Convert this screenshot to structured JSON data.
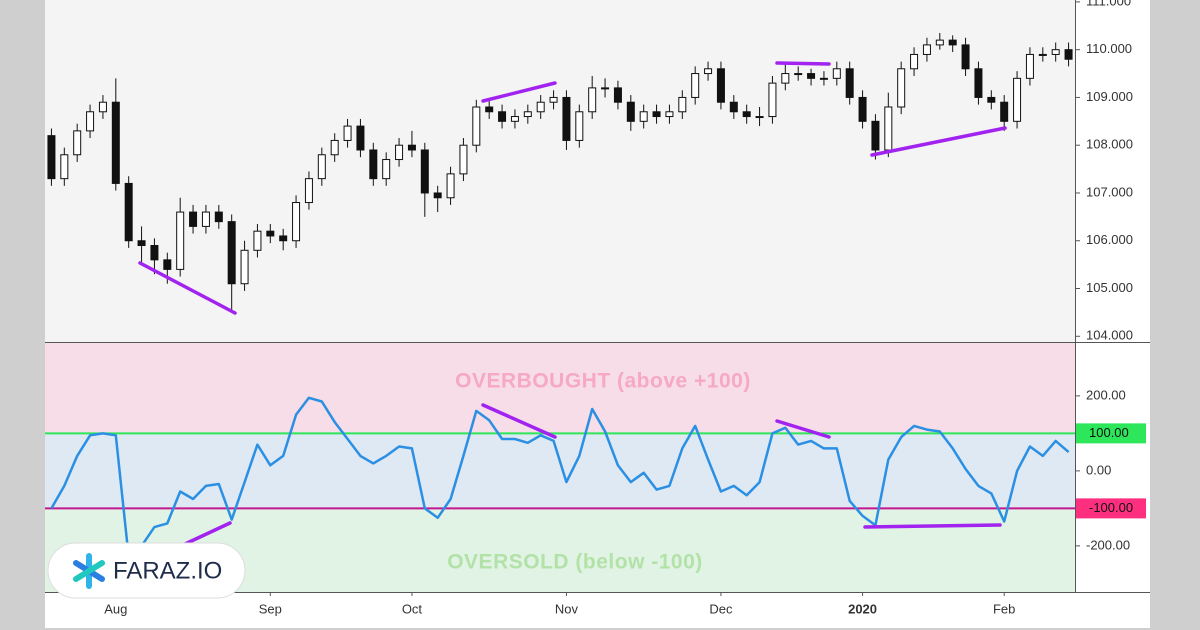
{
  "chart_data": [
    {
      "type": "candlestick",
      "categories": [
        null,
        null,
        null,
        null,
        null,
        "Aug",
        null,
        null,
        null,
        null,
        null,
        null,
        null,
        null,
        null,
        null,
        null,
        "Sep",
        null,
        null,
        null,
        null,
        null,
        null,
        null,
        null,
        null,
        null,
        "Oct",
        null,
        null,
        null,
        null,
        null,
        null,
        null,
        null,
        null,
        null,
        null,
        "Nov",
        null,
        null,
        null,
        null,
        null,
        null,
        null,
        null,
        null,
        null,
        null,
        "Dec",
        null,
        null,
        null,
        null,
        null,
        null,
        null,
        null,
        null,
        null,
        "2020",
        null,
        null,
        null,
        null,
        null,
        null,
        null,
        null,
        null,
        null,
        "Feb",
        null,
        null,
        null,
        null,
        null
      ],
      "open": [
        108.2,
        107.3,
        107.8,
        108.3,
        108.7,
        108.9,
        107.2,
        106.0,
        105.9,
        105.6,
        105.4,
        106.6,
        106.3,
        106.6,
        106.4,
        105.1,
        105.8,
        106.2,
        106.1,
        106.0,
        106.8,
        107.3,
        107.8,
        108.1,
        108.4,
        107.9,
        107.3,
        107.7,
        108.0,
        107.9,
        107.0,
        106.9,
        107.4,
        108.0,
        108.8,
        108.7,
        108.5,
        108.6,
        108.7,
        108.9,
        109.0,
        108.1,
        108.7,
        109.2,
        109.2,
        108.9,
        108.5,
        108.7,
        108.6,
        108.7,
        109.0,
        109.5,
        109.6,
        108.9,
        108.7,
        108.6,
        108.6,
        109.3,
        109.5,
        109.5,
        109.4,
        109.4,
        109.6,
        109.0,
        108.5,
        107.9,
        108.8,
        109.6,
        109.9,
        110.1,
        110.2,
        110.1,
        109.6,
        109.0,
        108.9,
        108.5,
        109.4,
        109.9,
        109.9,
        110.0
      ],
      "high": [
        108.35,
        107.95,
        108.45,
        108.85,
        109.05,
        109.4,
        107.35,
        106.3,
        106.05,
        105.75,
        106.9,
        106.75,
        106.75,
        106.75,
        106.55,
        106.0,
        106.35,
        106.35,
        106.25,
        106.95,
        107.45,
        107.95,
        108.25,
        108.55,
        108.55,
        108.05,
        107.85,
        108.15,
        108.3,
        108.05,
        107.15,
        107.55,
        108.15,
        108.95,
        108.95,
        108.85,
        108.75,
        108.85,
        109.05,
        109.15,
        109.15,
        108.85,
        109.45,
        109.4,
        109.35,
        109.05,
        108.85,
        108.85,
        108.85,
        109.15,
        109.65,
        109.75,
        109.75,
        109.05,
        108.85,
        108.8,
        109.45,
        109.7,
        109.65,
        109.6,
        109.55,
        109.75,
        109.75,
        109.15,
        108.65,
        109.1,
        109.75,
        110.05,
        110.25,
        110.35,
        110.3,
        110.25,
        109.75,
        109.15,
        109.05,
        109.55,
        110.05,
        110.05,
        110.15,
        110.15
      ],
      "low": [
        107.15,
        107.15,
        107.65,
        108.15,
        108.55,
        107.05,
        105.85,
        105.5,
        105.3,
        105.1,
        105.25,
        106.15,
        106.15,
        106.25,
        104.5,
        104.95,
        105.65,
        105.95,
        105.8,
        105.85,
        106.65,
        107.15,
        107.65,
        107.95,
        107.75,
        107.15,
        107.15,
        107.55,
        107.75,
        106.5,
        106.6,
        106.75,
        107.25,
        107.85,
        108.55,
        108.35,
        108.35,
        108.45,
        108.55,
        108.75,
        107.9,
        107.95,
        108.55,
        109.0,
        108.75,
        108.3,
        108.35,
        108.45,
        108.45,
        108.55,
        108.85,
        109.35,
        108.75,
        108.55,
        108.45,
        108.4,
        108.45,
        109.15,
        109.35,
        109.25,
        109.25,
        109.25,
        108.85,
        108.35,
        107.7,
        107.75,
        108.65,
        109.45,
        109.75,
        110.0,
        109.95,
        109.45,
        108.85,
        108.75,
        108.3,
        108.35,
        109.25,
        109.75,
        109.75,
        109.65
      ],
      "close": [
        107.3,
        107.8,
        108.3,
        108.7,
        108.9,
        107.2,
        106.0,
        105.9,
        105.6,
        105.4,
        106.6,
        106.3,
        106.6,
        106.4,
        105.1,
        105.8,
        106.2,
        106.1,
        106.0,
        106.8,
        107.3,
        107.8,
        108.1,
        108.4,
        107.9,
        107.3,
        107.7,
        108.0,
        107.9,
        107.0,
        106.9,
        107.4,
        108.0,
        108.8,
        108.7,
        108.5,
        108.6,
        108.7,
        108.9,
        109.0,
        108.1,
        108.7,
        109.2,
        109.2,
        108.9,
        108.5,
        108.7,
        108.6,
        108.7,
        109.0,
        109.5,
        109.6,
        108.9,
        108.7,
        108.6,
        108.6,
        109.3,
        109.5,
        109.5,
        109.4,
        109.4,
        109.6,
        109.0,
        108.5,
        107.9,
        108.8,
        109.6,
        109.9,
        110.1,
        110.2,
        110.1,
        109.6,
        109.0,
        108.9,
        108.5,
        109.4,
        109.9,
        109.9,
        110.0,
        109.8
      ],
      "up_color": "#ffffff",
      "down_color": "#111111",
      "ylim": [
        103.88,
        111.04
      ],
      "yticks": [
        {
          "value": 111,
          "label": "111.000"
        },
        {
          "value": 110,
          "label": "110.000"
        },
        {
          "value": 109,
          "label": "109.000"
        },
        {
          "value": 108,
          "label": "108.000"
        },
        {
          "value": 107,
          "label": "107.000"
        },
        {
          "value": 106,
          "label": "106.000"
        },
        {
          "value": 105,
          "label": "105.000"
        },
        {
          "value": 104,
          "label": "104.000"
        }
      ]
    },
    {
      "type": "line",
      "values": [
        -100,
        -40,
        40,
        95,
        100,
        95,
        -230,
        -200,
        -150,
        -140,
        -55,
        -75,
        -40,
        -35,
        -130,
        -30,
        70,
        15,
        40,
        150,
        195,
        185,
        130,
        85,
        40,
        20,
        40,
        65,
        60,
        -100,
        -125,
        -75,
        40,
        160,
        135,
        85,
        85,
        75,
        95,
        80,
        -30,
        40,
        165,
        105,
        15,
        -30,
        -5,
        -50,
        -40,
        60,
        120,
        30,
        -55,
        -40,
        -65,
        -30,
        100,
        115,
        70,
        80,
        60,
        60,
        -80,
        -120,
        -145,
        30,
        90,
        120,
        110,
        105,
        60,
        5,
        -40,
        -60,
        -135,
        0,
        65,
        40,
        80,
        50
      ],
      "color": "#2b8fe3",
      "overbought": 100,
      "oversold": -100,
      "overbought_color": "#2ee65a",
      "oversold_color": "#c2188f",
      "oversold_box_color": "#ff2f7f",
      "overbought_label": "OVERBOUGHT (above  +100)",
      "oversold_label": "OVERSOLD (below -100)",
      "ylim": [
        -323,
        341
      ],
      "yticks": [
        {
          "value": 200,
          "label": "200.00"
        },
        {
          "value": 100,
          "label": "100.00"
        },
        {
          "value": 0,
          "label": "0.00"
        },
        {
          "value": -100,
          "label": "-100.00"
        },
        {
          "value": -200,
          "label": "-200.00"
        }
      ]
    }
  ],
  "logo": "FARAZ.IO"
}
